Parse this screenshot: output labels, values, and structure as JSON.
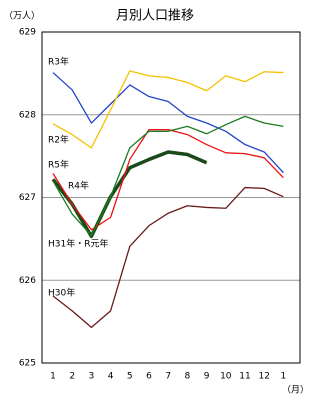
{
  "chart_data": {
    "type": "line",
    "title": "月別人口推移",
    "y_unit": "（万人）",
    "x_unit": "（月）",
    "categories": [
      "1",
      "2",
      "3",
      "4",
      "5",
      "6",
      "7",
      "8",
      "9",
      "10",
      "11",
      "12",
      "1"
    ],
    "ylim": [
      625,
      629
    ],
    "yticks": [
      625,
      626,
      627,
      628,
      629
    ],
    "grid": true,
    "series": [
      {
        "name": "R3年",
        "color": "#2244cc",
        "values": [
          628.51,
          628.3,
          627.9,
          628.13,
          628.36,
          628.22,
          628.16,
          627.98,
          627.9,
          627.8,
          627.64,
          627.55,
          627.3
        ]
      },
      {
        "name": "R2年",
        "color": "#f2c200",
        "values": [
          627.89,
          627.76,
          627.6,
          628.06,
          628.53,
          628.47,
          628.45,
          628.39,
          628.29,
          628.47,
          628.4,
          628.52,
          628.51
        ]
      },
      {
        "name": "R5年",
        "color": "#1a4a1a",
        "values": [
          627.22,
          626.92,
          626.53,
          627.01,
          627.36,
          627.46,
          627.55,
          627.52,
          627.42,
          null,
          null,
          null,
          null
        ]
      },
      {
        "name": "R4年",
        "color": "#ee1111",
        "values": [
          627.29,
          626.92,
          626.61,
          626.76,
          627.46,
          627.82,
          627.82,
          627.76,
          627.64,
          627.54,
          627.53,
          627.48,
          627.24
        ]
      },
      {
        "name": "H31年・R元年",
        "color": "#1e7a1e",
        "values": [
          627.2,
          626.8,
          626.54,
          627.01,
          627.6,
          627.8,
          627.8,
          627.86,
          627.77,
          627.88,
          627.98,
          627.9,
          627.86
        ]
      },
      {
        "name": "H30年",
        "color": "#6b1a1a",
        "values": [
          625.81,
          625.63,
          625.43,
          625.63,
          626.41,
          626.66,
          626.81,
          626.9,
          626.88,
          626.87,
          627.12,
          627.11,
          627.01
        ]
      }
    ]
  }
}
